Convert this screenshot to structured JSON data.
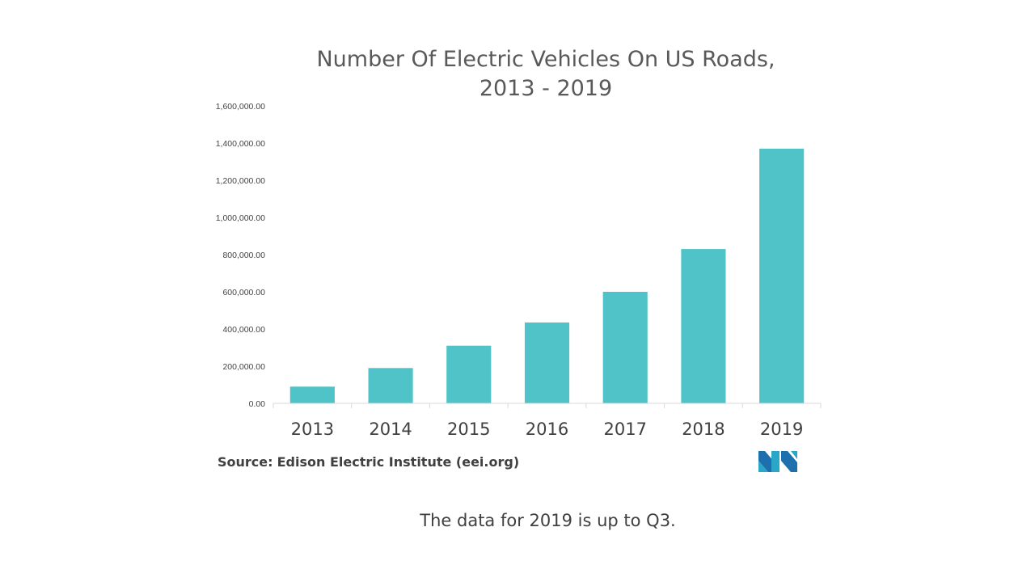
{
  "colors": {
    "bar": "#4fc3c8",
    "text": "#404040",
    "axis": "#d9d9d9"
  },
  "chart_data": {
    "type": "bar",
    "title_line1": "Number Of Electric Vehicles On US Roads,",
    "title_line2": "2013 - 2019",
    "xlabel": "",
    "ylabel": "",
    "ylim": [
      0,
      1600000
    ],
    "yticks": [
      "0.00",
      "200,000.00",
      "400,000.00",
      "600,000.00",
      "800,000.00",
      "1,000,000.00",
      "1,200,000.00",
      "1,400,000.00",
      "1,600,000.00"
    ],
    "categories": [
      "2013",
      "2014",
      "2015",
      "2016",
      "2017",
      "2018",
      "2019"
    ],
    "values": [
      90000,
      190000,
      310000,
      435000,
      600000,
      830000,
      1370000
    ],
    "grid": false,
    "legend": "none"
  },
  "source": {
    "label": "Source:",
    "text": "Edison Electric Institute (eei.org)"
  },
  "logo_icon": "mordor-logo-icon",
  "footnote": "The data for 2019 is up to Q3."
}
